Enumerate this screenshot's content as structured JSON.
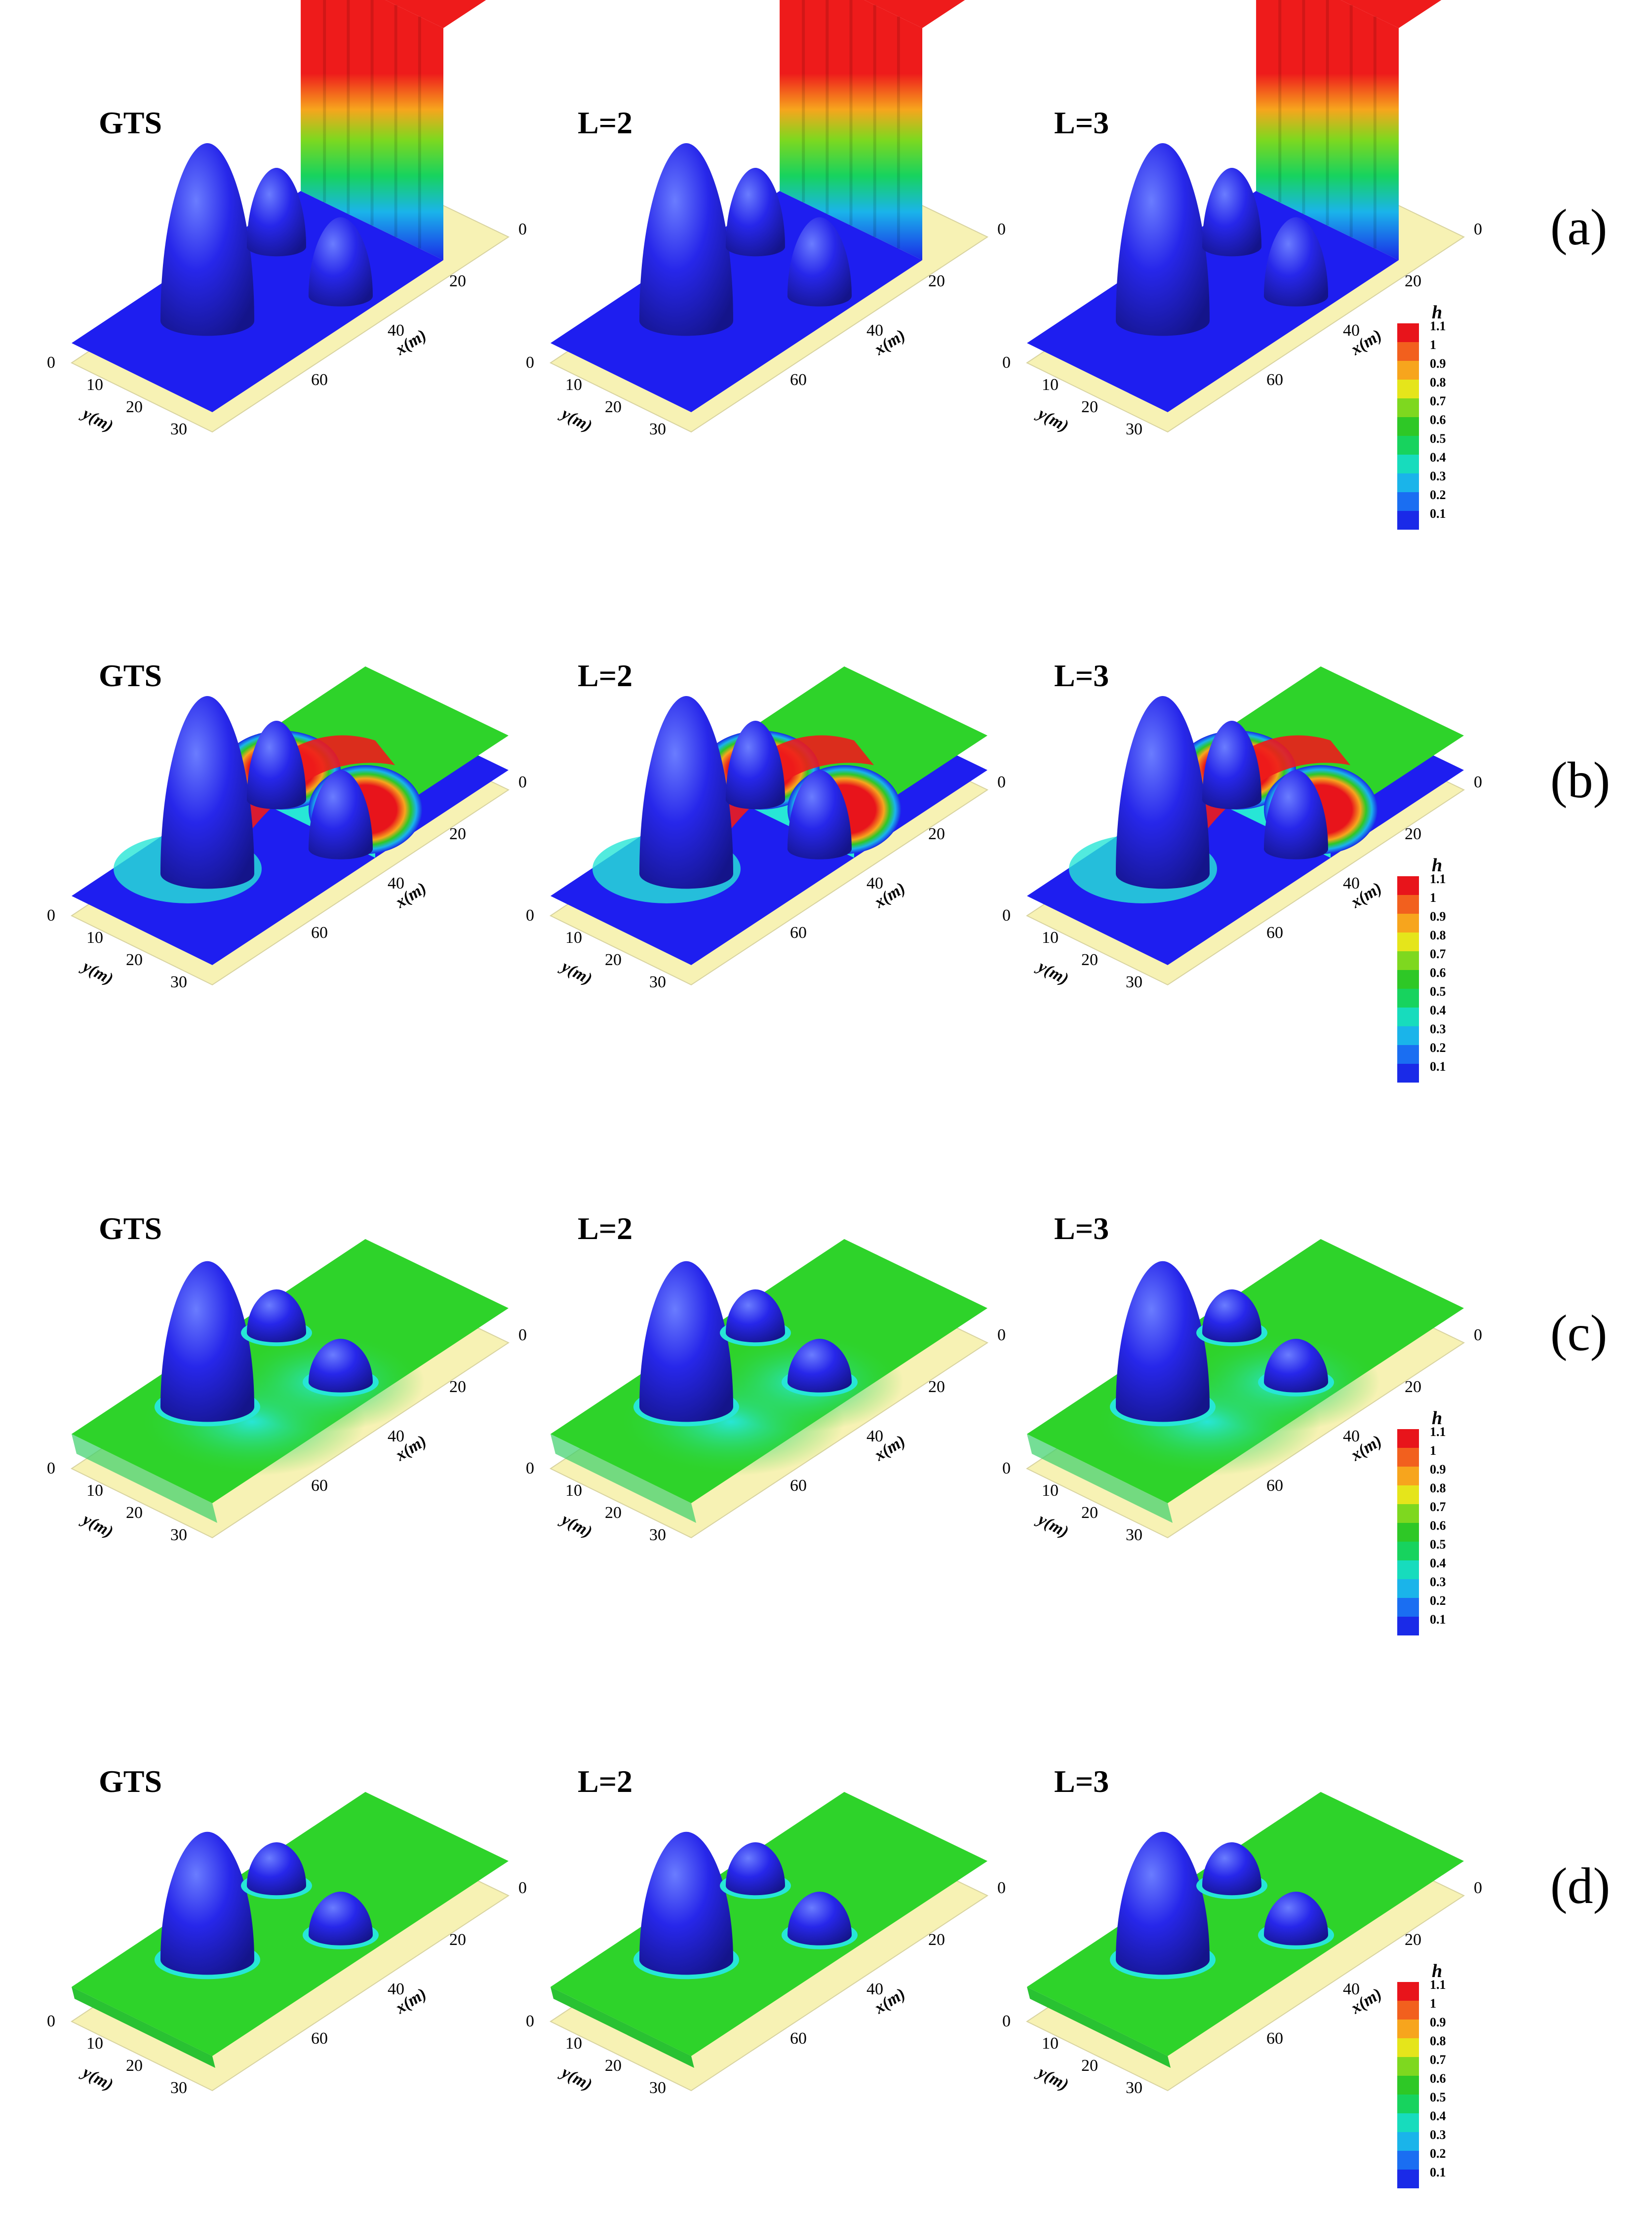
{
  "rows": [
    {
      "label": "(a)",
      "stage": 0
    },
    {
      "label": "(b)",
      "stage": 1
    },
    {
      "label": "(c)",
      "stage": 2
    },
    {
      "label": "(d)",
      "stage": 3
    }
  ],
  "case_titles": [
    "GTS",
    "L=2",
    "L=3"
  ],
  "axes": {
    "x_label": "x(m)",
    "y_label": "y(m)",
    "x_ticks": [
      "0",
      "20",
      "40",
      "60"
    ],
    "y_ticks": [
      "0",
      "10",
      "20",
      "30"
    ]
  },
  "colorbar": {
    "title": "h",
    "levels": [
      "1.1",
      "1",
      "0.9",
      "0.8",
      "0.7",
      "0.6",
      "0.5",
      "0.4",
      "0.3",
      "0.2",
      "0.1"
    ],
    "colors": [
      "#e8141b",
      "#f2601e",
      "#f7a51d",
      "#e5e51b",
      "#7ed81f",
      "#2ec826",
      "#17d35e",
      "#17dcbd",
      "#1ab4ea",
      "#1a6ef2",
      "#1a2ae8"
    ]
  },
  "surface_colors": {
    "base": "#f7f2b4",
    "deep": "#1e1ef0",
    "mound": "#2222e6",
    "mound_light": "#5a6cff",
    "mid": "#2ed32a",
    "shallow": "#27e6d6",
    "high": "#ee1b1b"
  }
}
